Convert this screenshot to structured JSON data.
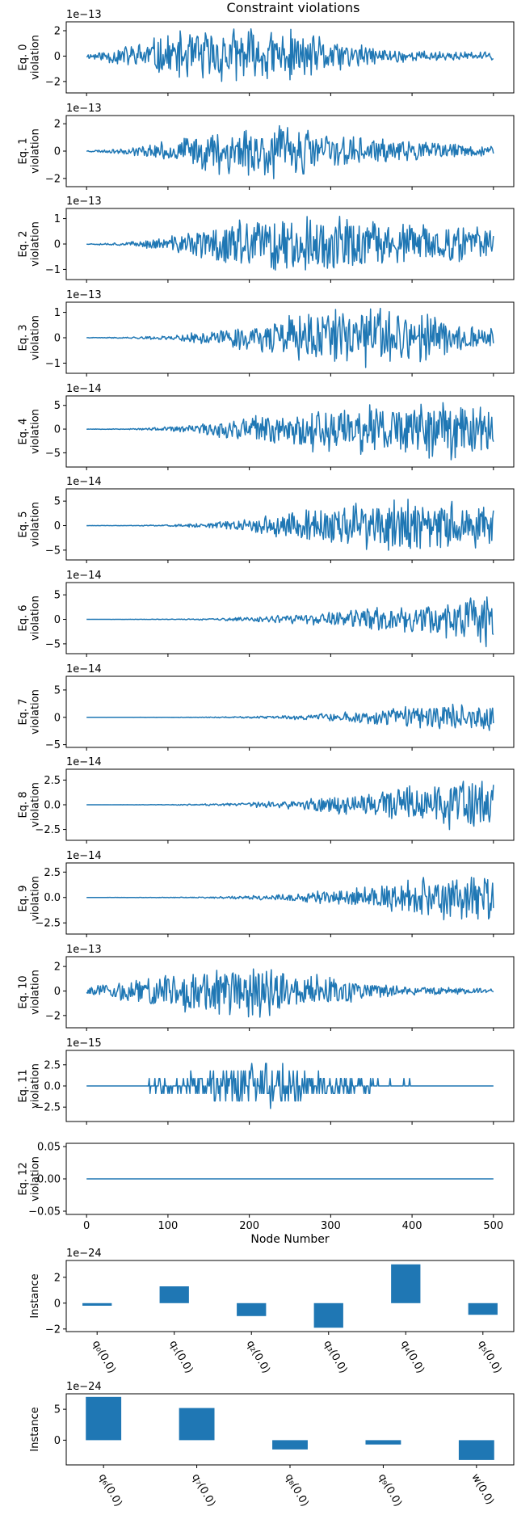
{
  "title": "Constraint violations",
  "colors": {
    "series": "#1f77b4",
    "axis": "#000000",
    "background": "#ffffff"
  },
  "chart_data": [
    {
      "type": "line",
      "ylabel": "Eq. 0\nviolation",
      "exponent": "1e−13",
      "yticks": [
        2,
        0,
        -2
      ],
      "ytick_labels": [
        "2",
        "0",
        "−2"
      ],
      "ylim": [
        -2.9,
        2.7
      ],
      "xlim": [
        -25,
        525
      ],
      "xticks": [
        0,
        100,
        200,
        300,
        400,
        500
      ],
      "x": [
        0,
        500
      ],
      "envelope": [
        0.2,
        1.0,
        1.9,
        2.4,
        2.5,
        2.2,
        1.5,
        0.8,
        0.5,
        0.4,
        0.35
      ],
      "seed": 11
    },
    {
      "type": "line",
      "ylabel": "Eq. 1\nviolation",
      "exponent": "1e−13",
      "yticks": [
        2,
        0,
        -2
      ],
      "ytick_labels": [
        "2",
        "0",
        "−2"
      ],
      "ylim": [
        -2.6,
        2.6
      ],
      "xlim": [
        -25,
        525
      ],
      "xticks": [
        0,
        100,
        200,
        300,
        400,
        500
      ],
      "x": [
        0,
        500
      ],
      "envelope": [
        0.05,
        0.25,
        0.8,
        1.6,
        2.3,
        2.2,
        1.5,
        1.0,
        0.8,
        0.6,
        0.4
      ],
      "seed": 23
    },
    {
      "type": "line",
      "ylabel": "Eq. 2\nviolation",
      "exponent": "1e−13",
      "yticks": [
        1,
        0,
        -1
      ],
      "ytick_labels": [
        "1",
        "0",
        "−1"
      ],
      "ylim": [
        -1.4,
        1.4
      ],
      "xlim": [
        -25,
        525
      ],
      "xticks": [
        0,
        100,
        200,
        300,
        400,
        500
      ],
      "x": [
        0,
        500
      ],
      "envelope": [
        0.02,
        0.08,
        0.3,
        0.8,
        1.2,
        1.25,
        1.2,
        1.05,
        0.9,
        0.8,
        0.7
      ],
      "seed": 37
    },
    {
      "type": "line",
      "ylabel": "Eq. 3\nviolation",
      "exponent": "1e−13",
      "yticks": [
        1,
        0,
        -1
      ],
      "ytick_labels": [
        "1",
        "0",
        "−1"
      ],
      "ylim": [
        -1.4,
        1.4
      ],
      "xlim": [
        -25,
        525
      ],
      "xticks": [
        0,
        100,
        200,
        300,
        400,
        500
      ],
      "x": [
        0,
        500
      ],
      "envelope": [
        0.01,
        0.03,
        0.1,
        0.3,
        0.55,
        0.9,
        1.15,
        1.25,
        1.1,
        0.7,
        0.4
      ],
      "seed": 41
    },
    {
      "type": "line",
      "ylabel": "Eq. 4\nviolation",
      "exponent": "1e−14",
      "yticks": [
        5,
        0,
        -5
      ],
      "ytick_labels": [
        "5",
        "0",
        "−5"
      ],
      "ylim": [
        -8,
        7
      ],
      "xlim": [
        -25,
        525
      ],
      "xticks": [
        0,
        100,
        200,
        300,
        400,
        500
      ],
      "x": [
        0,
        500
      ],
      "envelope": [
        0.05,
        0.1,
        0.5,
        1.5,
        3.0,
        4.5,
        5.5,
        6.0,
        6.5,
        7.0,
        6.5
      ],
      "seed": 53
    },
    {
      "type": "line",
      "ylabel": "Eq. 5\nviolation",
      "exponent": "1e−14",
      "yticks": [
        5,
        0,
        -5
      ],
      "ytick_labels": [
        "5",
        "0",
        "−5"
      ],
      "ylim": [
        -7,
        7.5
      ],
      "xlim": [
        -25,
        525
      ],
      "xticks": [
        0,
        100,
        200,
        300,
        400,
        500
      ],
      "x": [
        0,
        500
      ],
      "envelope": [
        0.02,
        0.05,
        0.2,
        0.6,
        1.5,
        3.0,
        4.5,
        6.0,
        6.0,
        5.5,
        5.0
      ],
      "seed": 61
    },
    {
      "type": "line",
      "ylabel": "Eq. 6\nviolation",
      "exponent": "1e−14",
      "yticks": [
        5,
        0,
        -5
      ],
      "ytick_labels": [
        "5",
        "0",
        "−5"
      ],
      "ylim": [
        -7,
        7.5
      ],
      "xlim": [
        -25,
        525
      ],
      "xticks": [
        0,
        100,
        200,
        300,
        400,
        500
      ],
      "x": [
        0,
        500
      ],
      "envelope": [
        0.01,
        0.02,
        0.08,
        0.2,
        0.5,
        1.0,
        1.8,
        2.5,
        3.5,
        4.5,
        6.5
      ],
      "seed": 71
    },
    {
      "type": "line",
      "ylabel": "Eq. 7\nviolation",
      "exponent": "1e−14",
      "yticks": [
        5,
        0,
        -5
      ],
      "ytick_labels": [
        "5",
        "0",
        "−5"
      ],
      "ylim": [
        -5.5,
        7.5
      ],
      "xlim": [
        -25,
        525
      ],
      "xticks": [
        0,
        100,
        200,
        300,
        400,
        500
      ],
      "x": [
        0,
        500
      ],
      "envelope": [
        0.005,
        0.01,
        0.03,
        0.08,
        0.2,
        0.4,
        0.8,
        1.5,
        2.2,
        2.8,
        3.0
      ],
      "seed": 83
    },
    {
      "type": "line",
      "ylabel": "Eq. 8\nviolation",
      "exponent": "1e−14",
      "yticks": [
        2.5,
        0,
        -2.5
      ],
      "ytick_labels": [
        "2.5",
        "0.0",
        "−2.5"
      ],
      "ylim": [
        -3.6,
        3.6
      ],
      "xlim": [
        -25,
        525
      ],
      "xticks": [
        0,
        100,
        200,
        300,
        400,
        500
      ],
      "x": [
        0,
        500
      ],
      "envelope": [
        0.005,
        0.01,
        0.03,
        0.1,
        0.25,
        0.5,
        0.9,
        1.4,
        2.2,
        3.0,
        2.8
      ],
      "seed": 97
    },
    {
      "type": "line",
      "ylabel": "Eq. 9\nviolation",
      "exponent": "1e−14",
      "yticks": [
        2.5,
        0,
        -2.5
      ],
      "ytick_labels": [
        "2.5",
        "0.0",
        "−2.5"
      ],
      "ylim": [
        -3.6,
        3.4
      ],
      "xlim": [
        -25,
        525
      ],
      "xticks": [
        0,
        100,
        200,
        300,
        400,
        500
      ],
      "x": [
        0,
        500
      ],
      "envelope": [
        0.005,
        0.01,
        0.03,
        0.08,
        0.2,
        0.45,
        0.8,
        1.2,
        2.0,
        2.8,
        2.6
      ],
      "seed": 101
    },
    {
      "type": "line",
      "ylabel": "Eq. 10\nviolation",
      "exponent": "1e−13",
      "yticks": [
        2,
        0,
        -2
      ],
      "ytick_labels": [
        "2",
        "0",
        "−2"
      ],
      "ylim": [
        -3.0,
        2.8
      ],
      "xlim": [
        -25,
        525
      ],
      "xticks": [
        0,
        100,
        200,
        300,
        400,
        500
      ],
      "x": [
        0,
        500
      ],
      "envelope": [
        0.3,
        1.0,
        1.8,
        2.2,
        2.3,
        2.1,
        1.3,
        0.7,
        0.4,
        0.3,
        0.25
      ],
      "seed": 113
    },
    {
      "type": "line",
      "ylabel": "Eq. 11\nviolation",
      "exponent": "1e−15",
      "yticks": [
        2.5,
        0,
        -2.5
      ],
      "ytick_labels": [
        "2.5",
        "0.0",
        "−2.5"
      ],
      "ylim": [
        -4.2,
        4.2
      ],
      "xlim": [
        -25,
        525
      ],
      "xticks": [
        0,
        100,
        200,
        300,
        400,
        500
      ],
      "x": [
        0,
        500
      ],
      "envelope": [
        0.3,
        0.5,
        0.9,
        2.2,
        3.4,
        3.0,
        1.5,
        0.8,
        0.5,
        0.4,
        0.3
      ],
      "quantum": 0.888,
      "seed": 127
    },
    {
      "type": "line",
      "ylabel": "Eq. 12\nviolation",
      "exponent": "",
      "yticks": [
        0.05,
        0,
        -0.05
      ],
      "ytick_labels": [
        "0.05",
        "0.00",
        "−0.05"
      ],
      "ylim": [
        -0.055,
        0.055
      ],
      "xlim": [
        -25,
        525
      ],
      "xticks": [
        0,
        100,
        200,
        300,
        400,
        500
      ],
      "xtick_labels": [
        "0",
        "100",
        "200",
        "300",
        "400",
        "500"
      ],
      "xlabel": "Node Number",
      "x": [
        0,
        500
      ],
      "envelope": [
        0,
        0,
        0,
        0,
        0,
        0,
        0,
        0,
        0,
        0,
        0
      ],
      "seed": 131
    },
    {
      "type": "bar",
      "ylabel": "Instance",
      "exponent": "1e−24",
      "categories": [
        "q₀(0.0)",
        "q₁(0.0)",
        "q₂(0.0)",
        "q₃(0.0)",
        "q₄(0.0)",
        "q₅(0.0)"
      ],
      "values": [
        -0.2,
        1.3,
        -1.0,
        -1.9,
        3.0,
        -0.9
      ],
      "yticks": [
        2,
        0,
        -2
      ],
      "ytick_labels": [
        "2",
        "0",
        "−2"
      ],
      "ylim": [
        -2.2,
        3.3
      ]
    },
    {
      "type": "bar",
      "ylabel": "Instance",
      "exponent": "1e−24",
      "categories": [
        "q₆(0.0)",
        "q₇(0.0)",
        "q₈(0.0)",
        "q₉(0.0)",
        "w(0.0)"
      ],
      "values": [
        7.0,
        5.2,
        -1.5,
        -0.7,
        -3.2
      ],
      "yticks": [
        5,
        0
      ],
      "ytick_labels": [
        "5",
        "0"
      ],
      "ylim": [
        -4.0,
        7.5
      ]
    }
  ]
}
